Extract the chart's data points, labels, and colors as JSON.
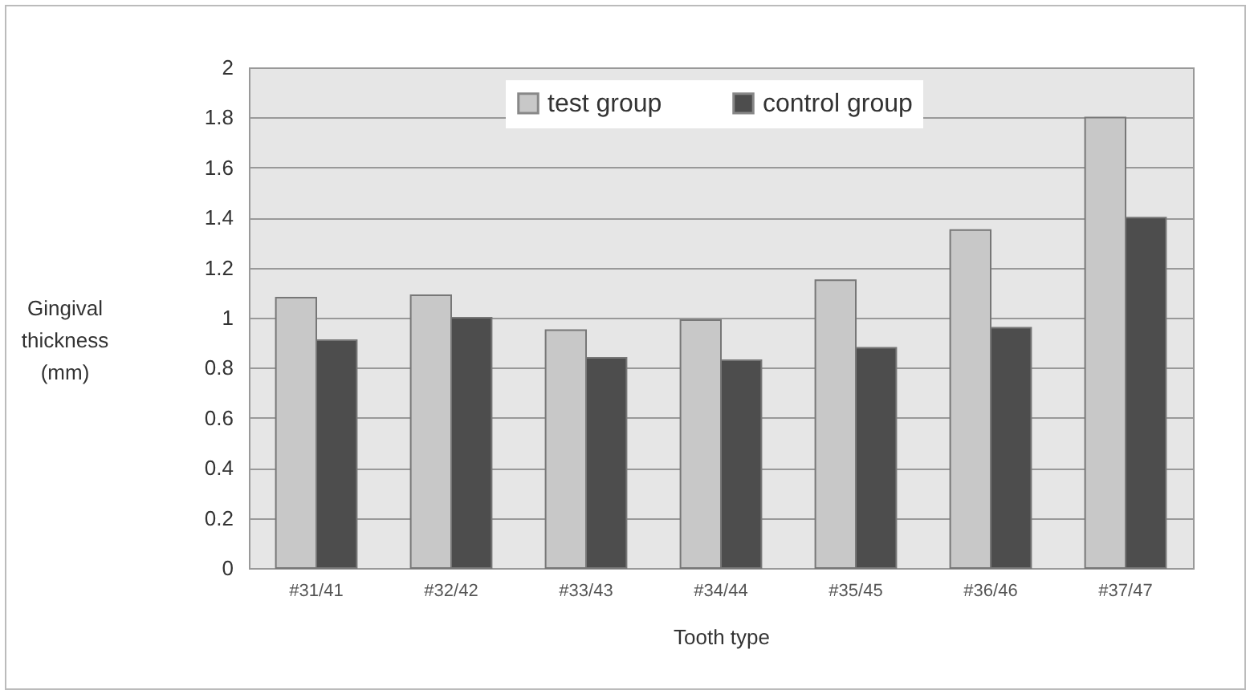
{
  "chart_data": {
    "type": "bar",
    "xlabel": "Tooth type",
    "ylabel": "Gingival thickness (mm)",
    "categories": [
      "#31/41",
      "#32/42",
      "#33/43",
      "#34/44",
      "#35/45",
      "#36/46",
      "#37/47"
    ],
    "series": [
      {
        "name": "test group",
        "color": "#c8c8c8",
        "values": [
          1.08,
          1.09,
          0.95,
          0.99,
          1.15,
          1.35,
          1.8
        ]
      },
      {
        "name": "control group",
        "color": "#4d4d4d",
        "values": [
          0.91,
          1.0,
          0.84,
          0.83,
          0.88,
          0.96,
          1.4
        ]
      }
    ],
    "ylim": [
      0,
      2
    ],
    "yticks": [
      0,
      0.2,
      0.4,
      0.6,
      0.8,
      1,
      1.2,
      1.4,
      1.6,
      1.8,
      2
    ],
    "grid": "y",
    "legend": "top right"
  }
}
